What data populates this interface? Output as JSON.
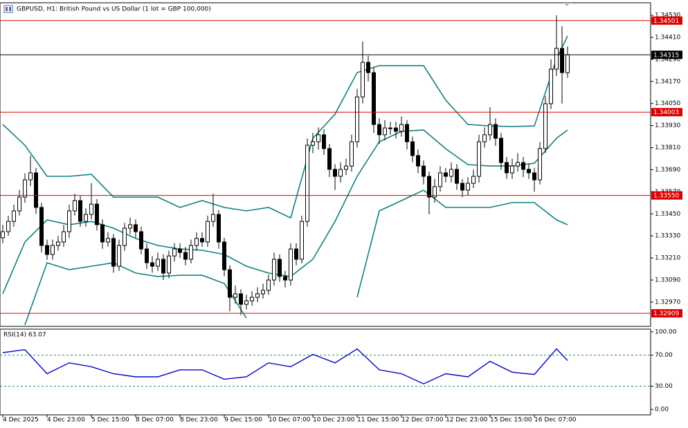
{
  "chart_data": [
    {
      "type": "candlestick",
      "title": "GBPUSD, H1:  British Pound vs US Dollar (1 lot = GBP 100,000)",
      "xlim": [
        -0.5,
        117
      ],
      "ylim": [
        1.32838,
        1.34598
      ],
      "yticks": [
        {
          "value": 1.3453,
          "label": "1.34530"
        },
        {
          "value": 1.3441,
          "label": "1.34410"
        },
        {
          "value": 1.3429,
          "label": "1.34290"
        },
        {
          "value": 1.3417,
          "label": "1.34170"
        },
        {
          "value": 1.3405,
          "label": "1.34050"
        },
        {
          "value": 1.3393,
          "label": "1.33930"
        },
        {
          "value": 1.3381,
          "label": "1.33810"
        },
        {
          "value": 1.3369,
          "label": "1.33690"
        },
        {
          "value": 1.3357,
          "label": "1.33570"
        },
        {
          "value": 1.3345,
          "label": "1.33450"
        },
        {
          "value": 1.3333,
          "label": "1.33330"
        },
        {
          "value": 1.3321,
          "label": "1.33210"
        },
        {
          "value": 1.3309,
          "label": "1.33090"
        },
        {
          "value": 1.3297,
          "label": "1.32970"
        }
      ],
      "levels": [
        {
          "value": 1.34501,
          "color": "#e00000"
        },
        {
          "value": 1.34315,
          "color": "#000000"
        },
        {
          "value": 1.34003,
          "color": "#e00000"
        },
        {
          "value": 1.3355,
          "label": "1.33550",
          "color": "#e00000"
        },
        {
          "value": 1.32909,
          "color": "#e00000"
        }
      ],
      "candles": [
        [
          1.3332,
          1.3339,
          1.3329,
          1.33353
        ],
        [
          1.33353,
          1.3344,
          1.3333,
          1.33409
        ],
        [
          1.33409,
          1.335,
          1.3338,
          1.33466
        ],
        [
          1.33466,
          1.3358,
          1.3344,
          1.33541
        ],
        [
          1.33541,
          1.3367,
          1.3351,
          1.33635
        ],
        [
          1.33635,
          1.33767,
          1.336,
          1.33673
        ],
        [
          1.33673,
          1.337,
          1.3345,
          1.33485
        ],
        [
          1.33485,
          1.3351,
          1.3324,
          1.33278
        ],
        [
          1.33278,
          1.3331,
          1.332,
          1.33229
        ],
        [
          1.33229,
          1.3331,
          1.332,
          1.33278
        ],
        [
          1.33278,
          1.3333,
          1.3325,
          1.33297
        ],
        [
          1.33297,
          1.3339,
          1.3327,
          1.33353
        ],
        [
          1.33353,
          1.335,
          1.3332,
          1.33466
        ],
        [
          1.33466,
          1.3356,
          1.3344,
          1.33522
        ],
        [
          1.33522,
          1.3355,
          1.3338,
          1.33409
        ],
        [
          1.33409,
          1.3348,
          1.3338,
          1.33447
        ],
        [
          1.33447,
          1.33617,
          1.3342,
          1.33503
        ],
        [
          1.33503,
          1.3353,
          1.3336,
          1.33391
        ],
        [
          1.33391,
          1.3342,
          1.3326,
          1.33297
        ],
        [
          1.33297,
          1.3335,
          1.3327,
          1.33316
        ],
        [
          1.33316,
          1.3334,
          1.3313,
          1.33165
        ],
        [
          1.33165,
          1.3331,
          1.3314,
          1.33278
        ],
        [
          1.33278,
          1.334,
          1.3325,
          1.33372
        ],
        [
          1.33372,
          1.3343,
          1.3334,
          1.33391
        ],
        [
          1.33391,
          1.3342,
          1.3332,
          1.33353
        ],
        [
          1.33353,
          1.3338,
          1.3323,
          1.33259
        ],
        [
          1.33259,
          1.3329,
          1.3315,
          1.33184
        ],
        [
          1.33184,
          1.3322,
          1.3313,
          1.33165
        ],
        [
          1.33165,
          1.3324,
          1.3314,
          1.33203
        ],
        [
          1.33203,
          1.3323,
          1.3309,
          1.33128
        ],
        [
          1.33128,
          1.3325,
          1.331,
          1.33221
        ],
        [
          1.33221,
          1.3329,
          1.3319,
          1.33259
        ],
        [
          1.33259,
          1.3329,
          1.3321,
          1.3324
        ],
        [
          1.3324,
          1.3327,
          1.3317,
          1.33203
        ],
        [
          1.33203,
          1.3331,
          1.3318,
          1.33278
        ],
        [
          1.33278,
          1.3335,
          1.3325,
          1.33316
        ],
        [
          1.33316,
          1.3335,
          1.3327,
          1.33297
        ],
        [
          1.33297,
          1.3344,
          1.3327,
          1.33409
        ],
        [
          1.33409,
          1.3356,
          1.3338,
          1.33447
        ],
        [
          1.33447,
          1.3347,
          1.3326,
          1.33297
        ],
        [
          1.33297,
          1.3332,
          1.3311,
          1.33146
        ],
        [
          1.33146,
          1.3317,
          1.3292,
          1.32996
        ],
        [
          1.32996,
          1.3306,
          1.3296,
          1.33015
        ],
        [
          1.33015,
          1.3304,
          1.329,
          1.32958
        ],
        [
          1.32958,
          1.3301,
          1.3293,
          1.32977
        ],
        [
          1.32977,
          1.3303,
          1.3295,
          1.32996
        ],
        [
          1.32996,
          1.3305,
          1.3297,
          1.33015
        ],
        [
          1.33015,
          1.3307,
          1.3299,
          1.33034
        ],
        [
          1.33034,
          1.3312,
          1.3301,
          1.3309
        ],
        [
          1.3309,
          1.3324,
          1.3306,
          1.33203
        ],
        [
          1.33203,
          1.3323,
          1.3308,
          1.33109
        ],
        [
          1.33109,
          1.3314,
          1.3305,
          1.3309
        ],
        [
          1.3309,
          1.3329,
          1.3306,
          1.33259
        ],
        [
          1.33259,
          1.3329,
          1.3317,
          1.33203
        ],
        [
          1.33203,
          1.3344,
          1.3318,
          1.33409
        ],
        [
          1.33409,
          1.3386,
          1.3338,
          1.33823
        ],
        [
          1.33823,
          1.3389,
          1.3378,
          1.33842
        ],
        [
          1.33842,
          1.3392,
          1.338,
          1.3388
        ],
        [
          1.3388,
          1.3391,
          1.3377,
          1.33805
        ],
        [
          1.33805,
          1.3383,
          1.3365,
          1.33692
        ],
        [
          1.33692,
          1.3372,
          1.3358,
          1.33654
        ],
        [
          1.33654,
          1.3373,
          1.3362,
          1.33692
        ],
        [
          1.33692,
          1.3375,
          1.3366,
          1.3371
        ],
        [
          1.3371,
          1.3388,
          1.3368,
          1.33842
        ],
        [
          1.33842,
          1.3413,
          1.3381,
          1.34086
        ],
        [
          1.34086,
          1.34387,
          1.3405,
          1.34274
        ],
        [
          1.34274,
          1.3431,
          1.3417,
          1.34218
        ],
        [
          1.34218,
          1.3425,
          1.3389,
          1.33936
        ],
        [
          1.33936,
          1.3397,
          1.3383,
          1.3388
        ],
        [
          1.3388,
          1.3396,
          1.3385,
          1.33917
        ],
        [
          1.33917,
          1.3395,
          1.3388,
          1.33917
        ],
        [
          1.33917,
          1.3395,
          1.3386,
          1.33899
        ],
        [
          1.33899,
          1.3398,
          1.3387,
          1.33936
        ],
        [
          1.33936,
          1.3396,
          1.338,
          1.33842
        ],
        [
          1.33842,
          1.3387,
          1.3373,
          1.33767
        ],
        [
          1.33767,
          1.338,
          1.3367,
          1.3371
        ],
        [
          1.3371,
          1.3374,
          1.3361,
          1.33654
        ],
        [
          1.33654,
          1.3368,
          1.33447,
          1.33541
        ],
        [
          1.33541,
          1.3364,
          1.3351,
          1.33598
        ],
        [
          1.33598,
          1.3371,
          1.3357,
          1.33673
        ],
        [
          1.33673,
          1.337,
          1.3362,
          1.33654
        ],
        [
          1.33654,
          1.3373,
          1.3362,
          1.33692
        ],
        [
          1.33692,
          1.3372,
          1.3358,
          1.33616
        ],
        [
          1.33616,
          1.3364,
          1.3354,
          1.33579
        ],
        [
          1.33579,
          1.3365,
          1.3355,
          1.33616
        ],
        [
          1.33616,
          1.3369,
          1.3359,
          1.33654
        ],
        [
          1.33654,
          1.3388,
          1.3362,
          1.33842
        ],
        [
          1.33842,
          1.3392,
          1.3381,
          1.3388
        ],
        [
          1.3388,
          1.3403,
          1.3385,
          1.33936
        ],
        [
          1.33936,
          1.3397,
          1.3382,
          1.33861
        ],
        [
          1.33861,
          1.3389,
          1.3369,
          1.33729
        ],
        [
          1.33729,
          1.3376,
          1.3364,
          1.33673
        ],
        [
          1.33673,
          1.3375,
          1.3364,
          1.3371
        ],
        [
          1.3371,
          1.3378,
          1.3368,
          1.33729
        ],
        [
          1.33729,
          1.3376,
          1.3365,
          1.33692
        ],
        [
          1.33692,
          1.3372,
          1.3364,
          1.33673
        ],
        [
          1.33673,
          1.337,
          1.3357,
          1.33635
        ],
        [
          1.33635,
          1.3384,
          1.3361,
          1.33805
        ],
        [
          1.33805,
          1.3409,
          1.3378,
          1.34049
        ],
        [
          1.34049,
          1.3429,
          1.3402,
          1.34237
        ],
        [
          1.34237,
          1.3453,
          1.342,
          1.3435
        ],
        [
          1.3435,
          1.3447,
          1.3405,
          1.34218
        ],
        [
          1.34218,
          1.3436,
          1.3419,
          1.34315
        ]
      ],
      "x": [
        0,
        4,
        8,
        12,
        16,
        20,
        24,
        28,
        32,
        36,
        40,
        44,
        48,
        52,
        56,
        60,
        64,
        68,
        72,
        76,
        80,
        84,
        88,
        92,
        96,
        100,
        102
      ],
      "series": [
        {
          "color": "#0f8080",
          "values": [
            1.33936,
            1.33823,
            1.33654,
            1.33654,
            1.33665,
            1.33541,
            1.33541,
            1.33541,
            1.33485,
            1.33522,
            1.33485,
            1.33466,
            1.33485,
            1.33428,
            1.33861,
            1.33992,
            1.34218,
            1.34256,
            1.34256,
            1.34256,
            1.34068,
            1.33936,
            1.33928,
            1.33925,
            1.33928,
            1.34293,
            1.34417
          ]
        },
        {
          "color": "#0f8080",
          "values": [
            1.33015,
            1.33297,
            1.33417,
            1.33391,
            1.33409,
            1.33372,
            1.33316,
            1.33278,
            1.33259,
            1.33252,
            1.33229,
            1.33165,
            1.33128,
            1.33109,
            1.33203,
            1.33409,
            1.33654,
            1.33842,
            1.33898,
            1.33906,
            1.33804,
            1.33718,
            1.3371,
            1.3371,
            1.33725,
            1.33861,
            1.33906
          ]
        },
        {
          "color": "#0f8080",
          "values": [
            null,
            1.32846,
            1.33184,
            1.33146,
            1.33165,
            1.33184,
            1.33128,
            1.33109,
            1.33116,
            1.33116,
            1.33071,
            1.32883,
            null,
            null,
            null,
            null,
            1.32996,
            1.33466,
            1.33522,
            1.33579,
            1.33485,
            1.33485,
            1.33485,
            1.33511,
            1.33511,
            1.33417,
            1.33391
          ]
        }
      ]
    },
    {
      "type": "line",
      "label": "RSI(14) 63.07",
      "xlim": [
        -0.5,
        117
      ],
      "ylim": [
        -7,
        103.5
      ],
      "yticks": [
        {
          "value": 100,
          "label": "100.00"
        },
        {
          "value": 70,
          "label": "70.00"
        },
        {
          "value": 30,
          "label": "30.00"
        },
        {
          "value": 0,
          "label": "0.00"
        }
      ],
      "levels": [
        70,
        30
      ],
      "xticks": [
        {
          "value": 0,
          "label": "4 Dec 2025"
        },
        {
          "value": 8,
          "label": "4 Dec 23:00"
        },
        {
          "value": 16,
          "label": "5 Dec 15:00"
        },
        {
          "value": 24,
          "label": "8 Dec 07:00"
        },
        {
          "value": 32,
          "label": "8 Dec 23:00"
        },
        {
          "value": 40,
          "label": "9 Dec 15:00"
        },
        {
          "value": 48,
          "label": "10 Dec 07:00"
        },
        {
          "value": 56,
          "label": "10 Dec 23:00"
        },
        {
          "value": 64,
          "label": "11 Dec 15:00"
        },
        {
          "value": 72,
          "label": "12 Dec 07:00"
        },
        {
          "value": 80,
          "label": "12 Dec 23:00"
        },
        {
          "value": 88,
          "label": "15 Dec 15:00"
        },
        {
          "value": 96,
          "label": "16 Dec 07:00"
        }
      ],
      "x": [
        0,
        4,
        8,
        12,
        16,
        20,
        24,
        28,
        32,
        36,
        40,
        44,
        48,
        52,
        56,
        60,
        64,
        68,
        72,
        76,
        80,
        84,
        88,
        92,
        96,
        100,
        102
      ],
      "series": [
        {
          "color": "#0000c8",
          "values": [
            73.2,
            77,
            46,
            60,
            55,
            46,
            42,
            42,
            51,
            51,
            39,
            42,
            60,
            55,
            71,
            60,
            78,
            51,
            46,
            33,
            46,
            42,
            62,
            48,
            45,
            78,
            63.07
          ]
        }
      ]
    }
  ]
}
